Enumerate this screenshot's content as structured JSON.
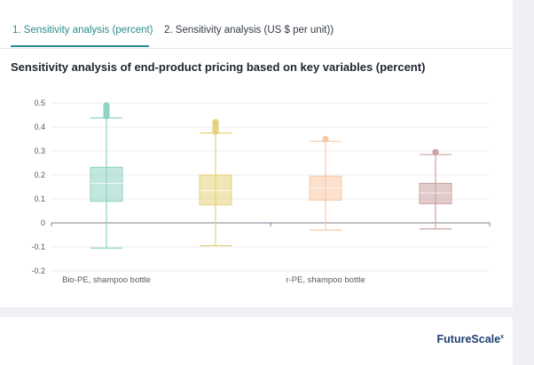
{
  "tabs": [
    {
      "label": "1. Sensitivity analysis (percent)",
      "active": true
    },
    {
      "label": "2. Sensitivity analysis (US $ per unit))",
      "active": false
    }
  ],
  "brand": {
    "name": "FutureScale",
    "mark": "x"
  },
  "chart_data": {
    "type": "box",
    "title": "Sensitivity analysis of end-product pricing based on key variables (percent)",
    "xlabel": "",
    "ylabel": "",
    "ylim": [
      -0.2,
      0.5
    ],
    "yticks": [
      "0.5",
      "0.4",
      "0.3",
      "0.2",
      "0.1",
      "0",
      "-0.1",
      "-0.2"
    ],
    "grid": true,
    "groups": [
      "Bio-PE, shampoo bottle",
      "r-PE, shampoo bottle"
    ],
    "boxes": [
      {
        "group": 0,
        "color": "#8fd3c2",
        "whisker_low": -0.105,
        "q1": 0.09,
        "median": 0.165,
        "q3": 0.232,
        "whisker_high": 0.438,
        "outliers": [
          0.445,
          0.455,
          0.465,
          0.475,
          0.485,
          0.49
        ]
      },
      {
        "group": 0,
        "color": "#e6d27a",
        "whisker_low": -0.095,
        "q1": 0.075,
        "median": 0.135,
        "q3": 0.2,
        "whisker_high": 0.375,
        "outliers": [
          0.38,
          0.39,
          0.4,
          0.41,
          0.42
        ]
      },
      {
        "group": 1,
        "color": "#f9c9a5",
        "whisker_low": -0.03,
        "q1": 0.095,
        "median": 0.145,
        "q3": 0.195,
        "whisker_high": 0.34,
        "outliers": [
          0.35
        ]
      },
      {
        "group": 1,
        "color": "#cba3a0",
        "whisker_low": -0.025,
        "q1": 0.08,
        "median": 0.125,
        "q3": 0.165,
        "whisker_high": 0.285,
        "outliers": [
          0.295
        ]
      }
    ]
  }
}
